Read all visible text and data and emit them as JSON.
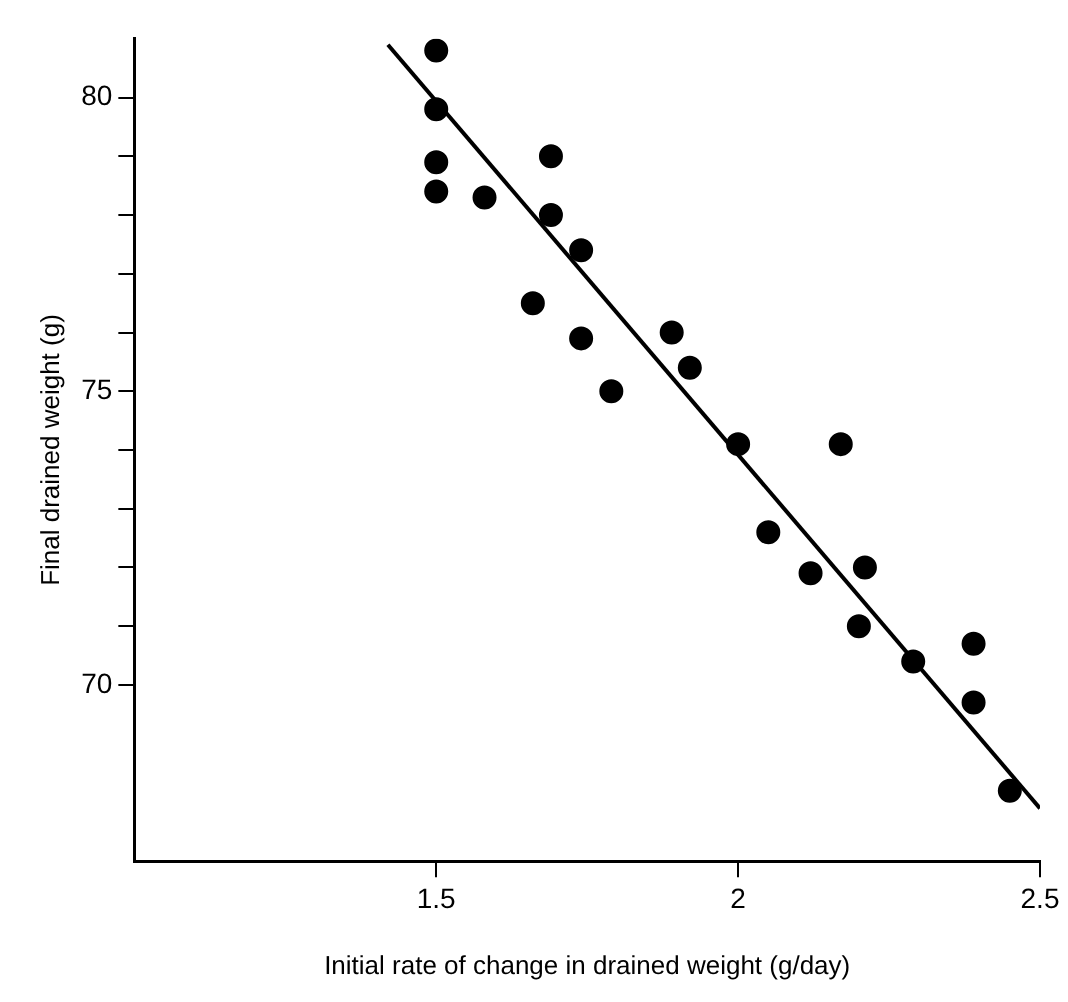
{
  "chart_data": {
    "type": "scatter",
    "xlabel": "Initial rate of change in drained weight (g/day)",
    "ylabel": "Final drained weight (g)",
    "xlim": [
      1,
      2.5
    ],
    "xticks": [
      1.5,
      2,
      2.5
    ],
    "ylim": [
      67,
      81
    ],
    "yticks": [
      70,
      {
        "value": 71,
        "label": null
      },
      {
        "value": 72,
        "label": null
      },
      {
        "value": 73,
        "label": null
      },
      {
        "value": 74,
        "label": null
      },
      75,
      {
        "value": 76,
        "label": null
      },
      {
        "value": 77,
        "label": null
      },
      {
        "value": 78,
        "label": null
      },
      {
        "value": 79,
        "label": null
      },
      80
    ],
    "grid": false,
    "legend": false,
    "marker": "circle",
    "series": [
      {
        "type": "scatter",
        "color": "#000000",
        "x": [
          1.5,
          1.5,
          1.5,
          1.5,
          1.58,
          1.69,
          1.69,
          1.74,
          1.66,
          1.74,
          1.79,
          1.89,
          1.92,
          2.0,
          2.17,
          2.05,
          2.12,
          2.21,
          2.2,
          2.29,
          2.39,
          2.39,
          2.45
        ],
        "values": [
          80.8,
          79.8,
          78.9,
          78.4,
          78.3,
          79.0,
          78.0,
          77.4,
          76.5,
          75.9,
          75.0,
          76.0,
          75.4,
          74.1,
          74.1,
          72.6,
          71.9,
          72.0,
          71.0,
          70.4,
          70.7,
          69.7,
          68.2
        ]
      },
      {
        "type": "line",
        "color": "#000000",
        "marker": "none",
        "line_style": "solid",
        "x": [
          1.42,
          2.5
        ],
        "values": [
          80.9,
          67.9
        ]
      }
    ]
  }
}
